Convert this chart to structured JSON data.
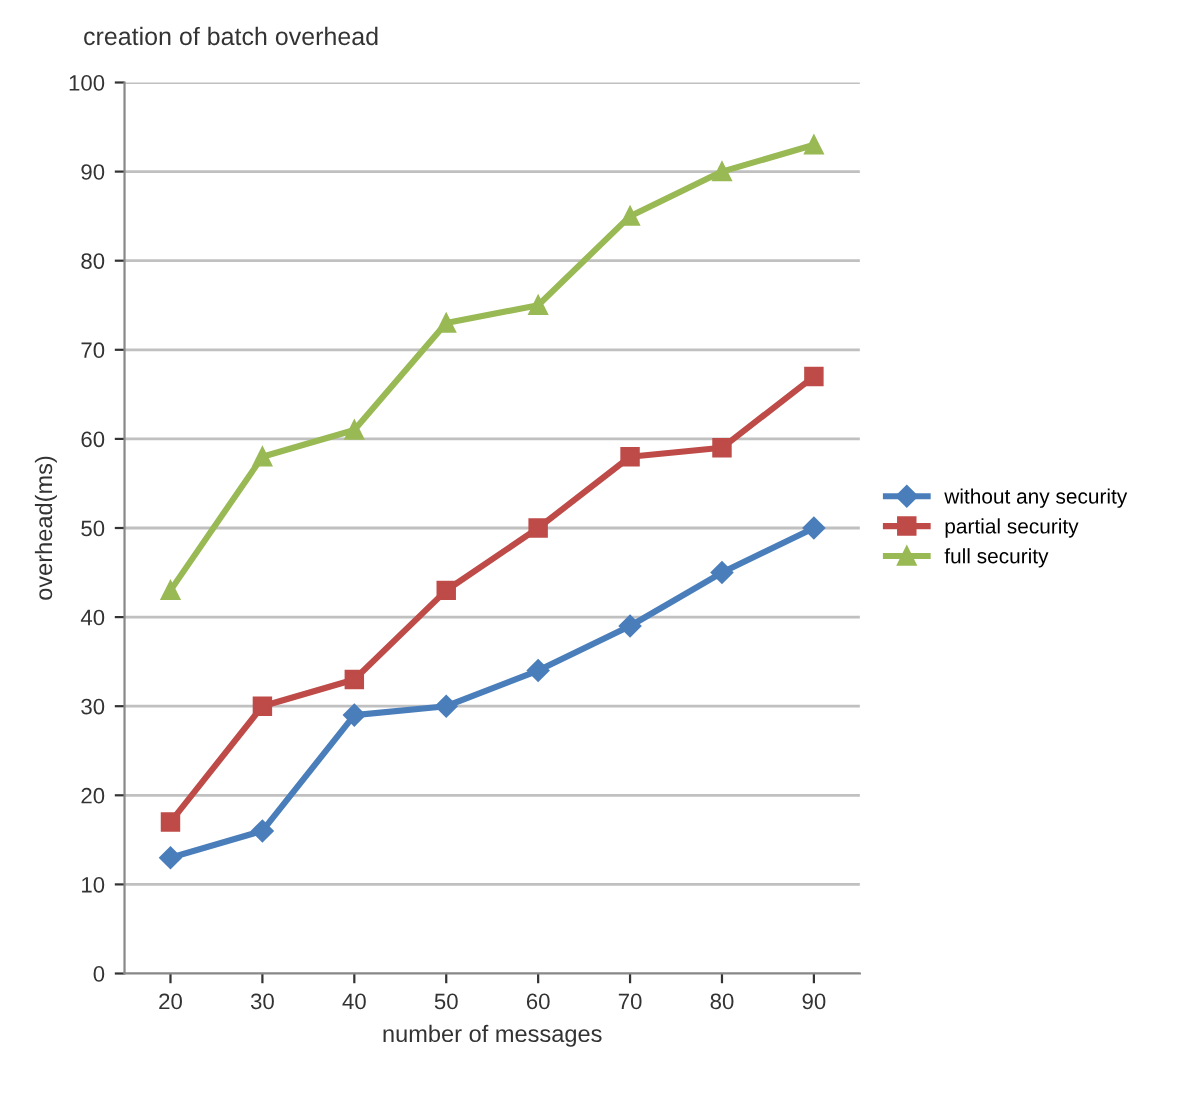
{
  "chart_data": {
    "type": "line",
    "title": "creation of batch overhead",
    "xlabel": "number of messages",
    "ylabel": "overhead(ms)",
    "categories": [
      "20",
      "30",
      "40",
      "50",
      "60",
      "70",
      "80",
      "90"
    ],
    "series": [
      {
        "name": "without any security",
        "color": "#4a7ebb",
        "marker": "diamond",
        "values": [
          13,
          16,
          29,
          30,
          34,
          39,
          45,
          50
        ]
      },
      {
        "name": "partial security",
        "color": "#be4b48",
        "marker": "square",
        "values": [
          17,
          30,
          33,
          43,
          50,
          58,
          59,
          67
        ]
      },
      {
        "name": "full security",
        "color": "#98b954",
        "marker": "triangle",
        "values": [
          43,
          58,
          61,
          73,
          75,
          85,
          90,
          93
        ]
      }
    ],
    "ylim": [
      0,
      100
    ],
    "yticks": [
      0,
      10,
      20,
      30,
      40,
      50,
      60,
      70,
      80,
      90,
      100
    ],
    "grid": "y",
    "legend": "right"
  }
}
